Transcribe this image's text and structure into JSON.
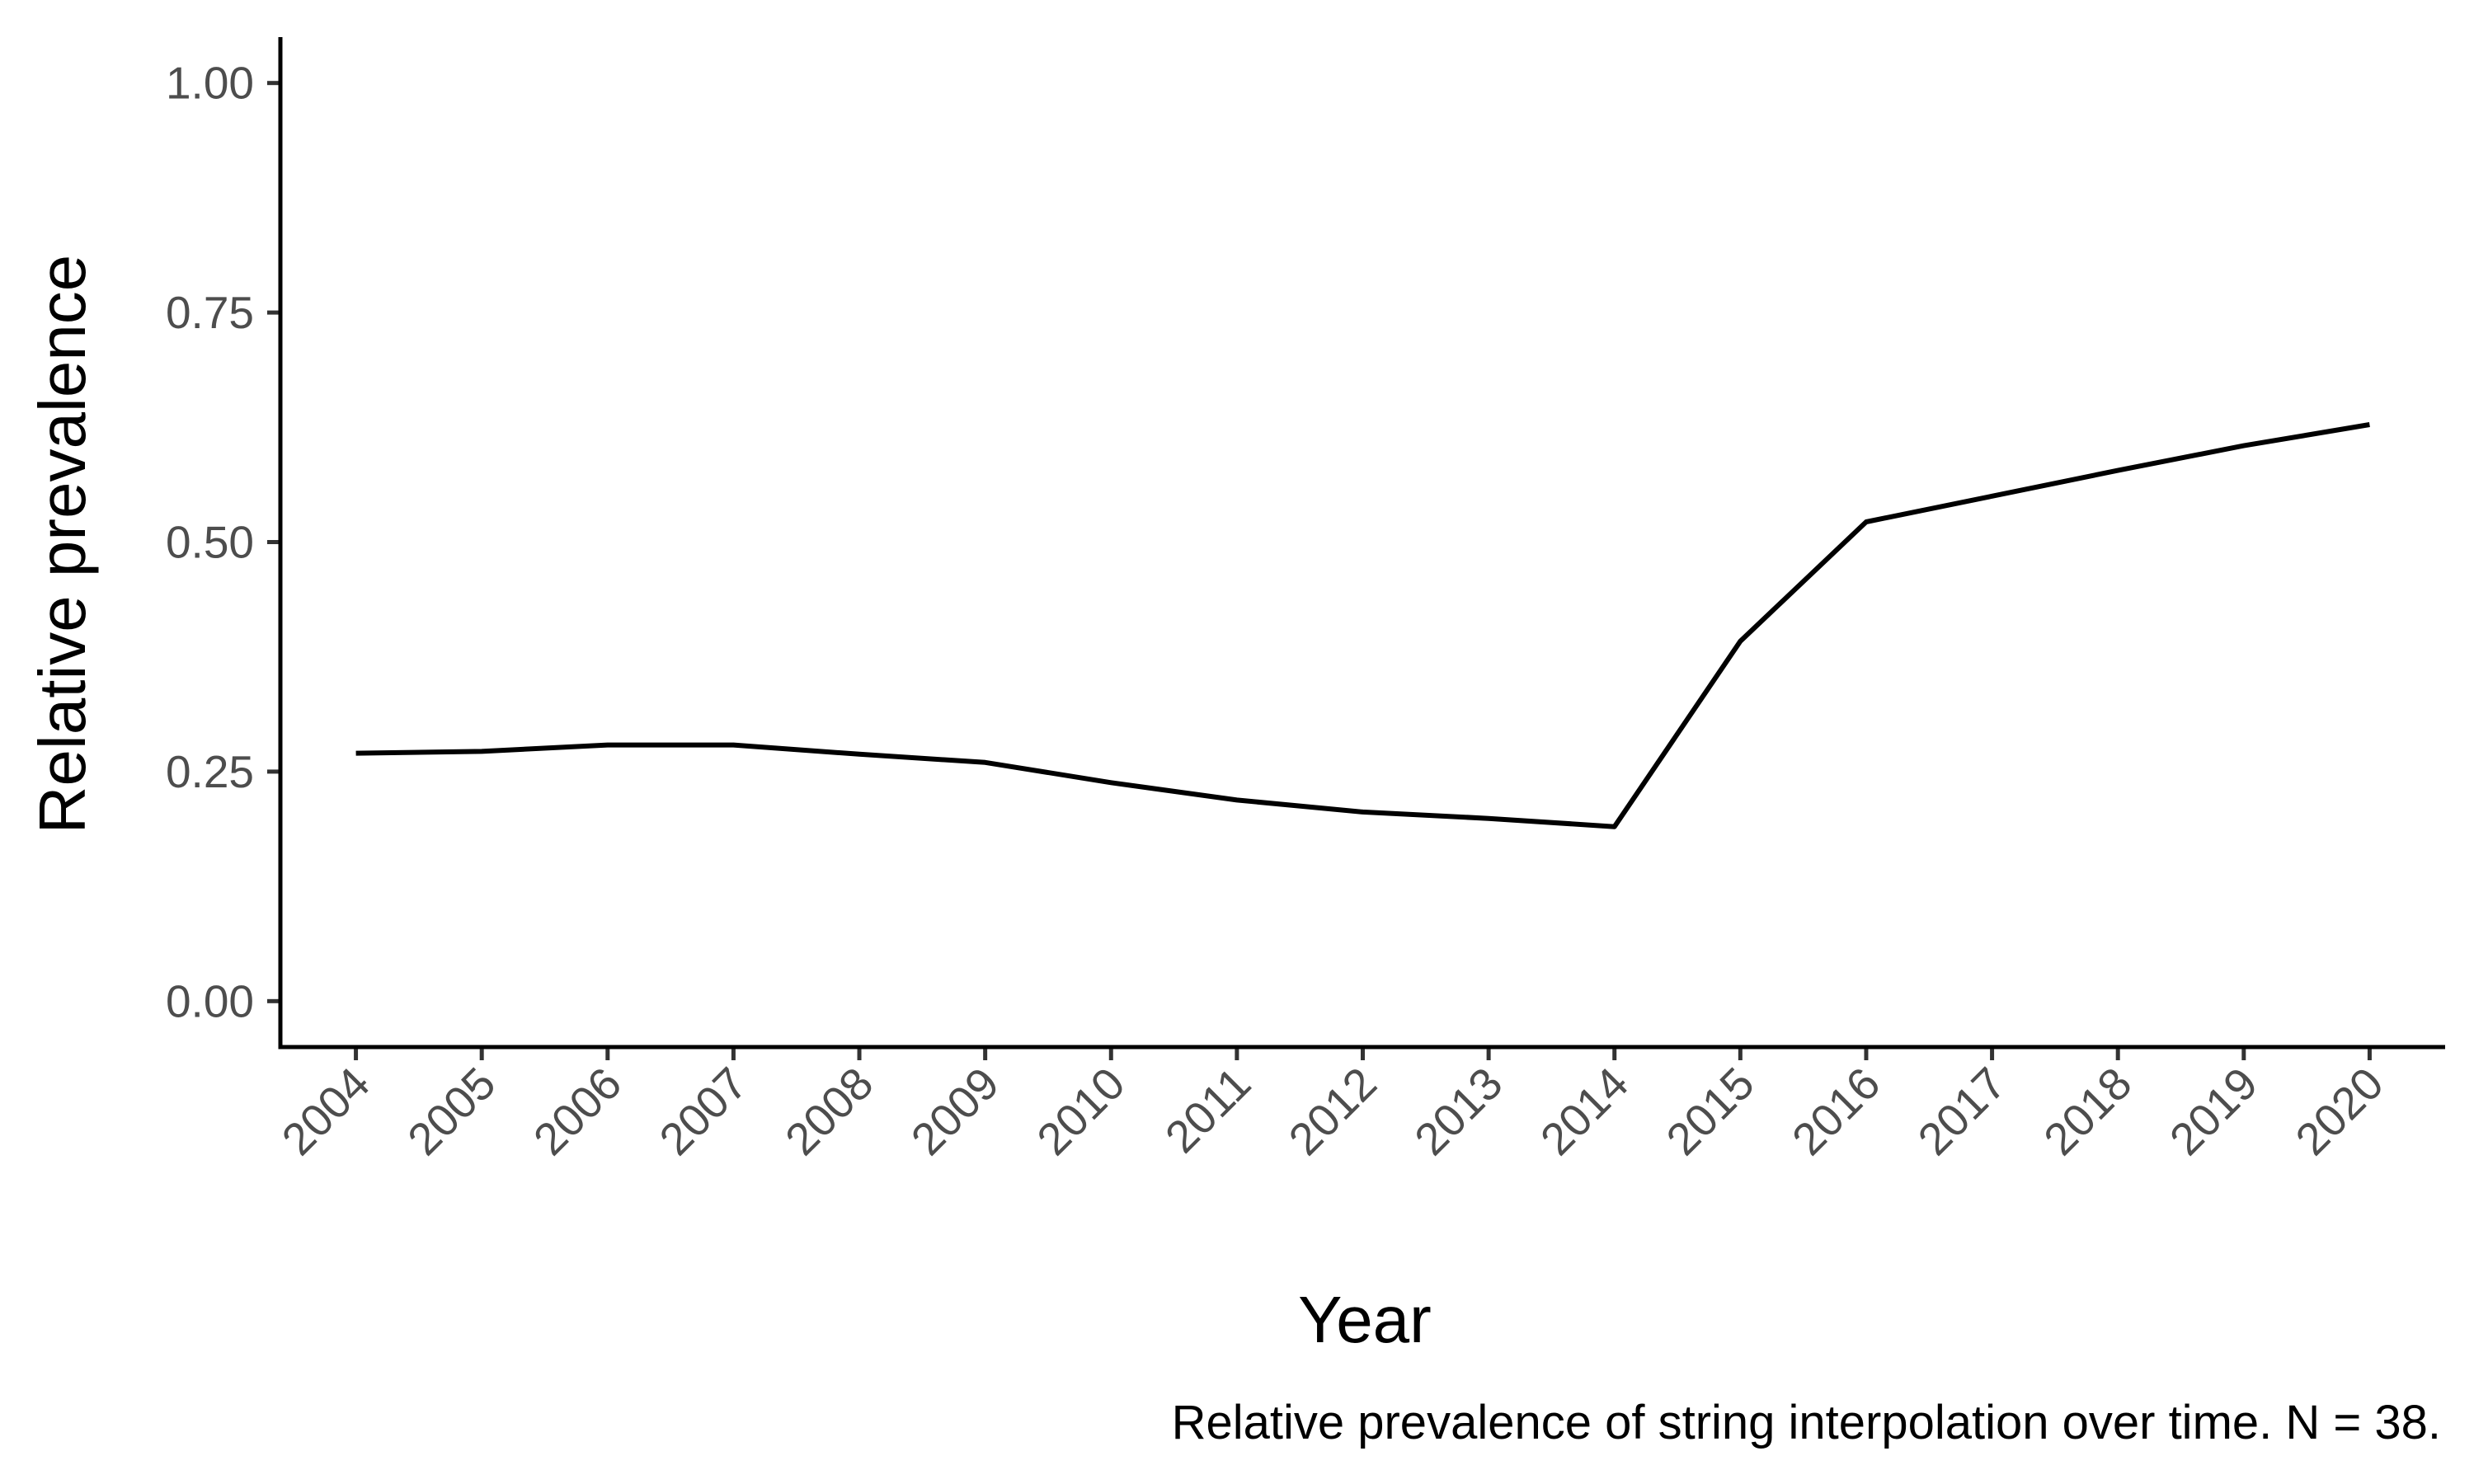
{
  "chart_data": {
    "type": "line",
    "title": "",
    "xlabel": "Year",
    "ylabel": "Relative prevalence",
    "caption": "Relative prevalence of string interpolation over time. N = 38.",
    "x": [
      2004,
      2005,
      2006,
      2007,
      2008,
      2009,
      2010,
      2011,
      2012,
      2013,
      2014,
      2015,
      2016,
      2017,
      2018,
      2019,
      2020
    ],
    "x_tick_labels": [
      "2004",
      "2005",
      "2006",
      "2007",
      "2008",
      "2009",
      "2010",
      "2011",
      "2012",
      "2013",
      "2014",
      "2015",
      "2016",
      "2017",
      "2018",
      "2019",
      "2020"
    ],
    "series": [
      {
        "values": [
          0.27,
          0.272,
          0.279,
          0.279,
          0.269,
          0.26,
          0.238,
          0.219,
          0.206,
          0.199,
          0.19,
          0.392,
          0.522,
          0.55,
          0.578,
          0.605,
          0.628
        ],
        "color": "#000000"
      }
    ],
    "ylim": [
      -0.05,
      1.05
    ],
    "y_ticks": [
      0.0,
      0.25,
      0.5,
      0.75,
      1.0
    ],
    "y_tick_labels": [
      "0.00",
      "0.25",
      "0.50",
      "0.75",
      "1.00"
    ],
    "grid": false,
    "legend": "none"
  }
}
